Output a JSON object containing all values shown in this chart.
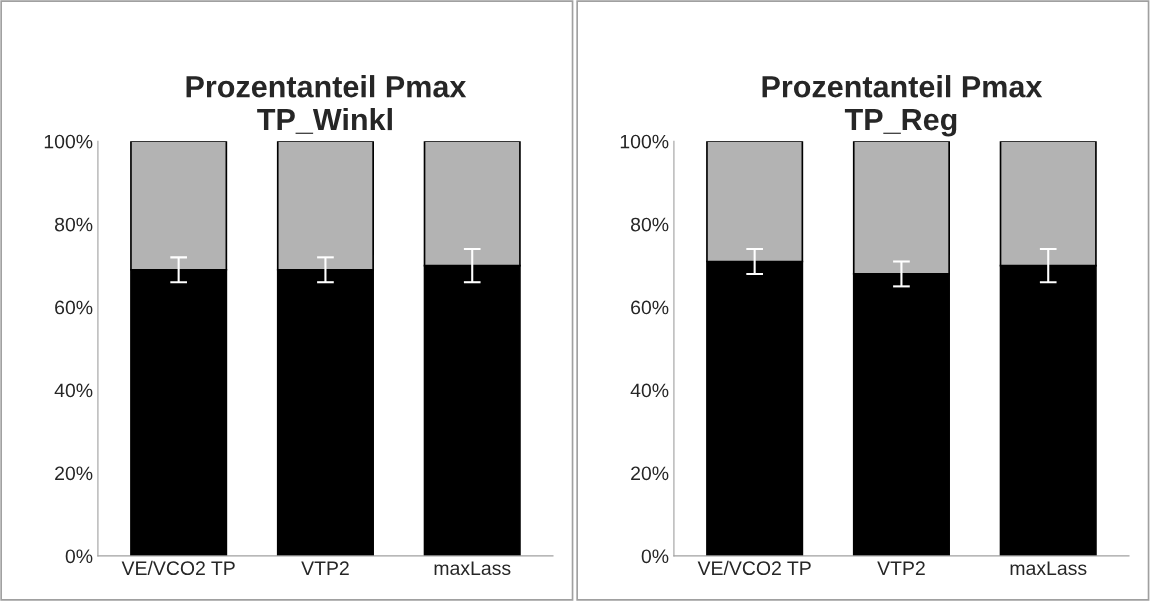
{
  "chart_data": [
    {
      "type": "bar",
      "stacked": true,
      "title": "Prozentanteil Pmax\nTP_Winkl",
      "categories": [
        "VE/VCO2 TP",
        "VTP2",
        "maxLass"
      ],
      "ylim": [
        0,
        100
      ],
      "yticks": [
        {
          "value": 0,
          "label": "0%"
        },
        {
          "value": 20,
          "label": "20%"
        },
        {
          "value": 40,
          "label": "40%"
        },
        {
          "value": 60,
          "label": "60%"
        },
        {
          "value": 80,
          "label": "80%"
        },
        {
          "value": 100,
          "label": "100%"
        }
      ],
      "grid": false,
      "series": [
        {
          "color": "#000000",
          "values": [
            69,
            69,
            70
          ],
          "errors": [
            [
              66,
              72
            ],
            [
              66,
              72
            ],
            [
              66,
              74
            ]
          ]
        },
        {
          "color": "#b3b3b3",
          "values": [
            31,
            31,
            30
          ]
        }
      ]
    },
    {
      "type": "bar",
      "stacked": true,
      "title": "Prozentanteil Pmax\nTP_Reg",
      "categories": [
        "VE/VCO2 TP",
        "VTP2",
        "maxLass"
      ],
      "ylim": [
        0,
        100
      ],
      "yticks": [
        {
          "value": 0,
          "label": "0%"
        },
        {
          "value": 20,
          "label": "20%"
        },
        {
          "value": 40,
          "label": "40%"
        },
        {
          "value": 60,
          "label": "60%"
        },
        {
          "value": 80,
          "label": "80%"
        },
        {
          "value": 100,
          "label": "100%"
        }
      ],
      "grid": false,
      "series": [
        {
          "color": "#000000",
          "values": [
            71,
            68,
            70
          ],
          "errors": [
            [
              68,
              74
            ],
            [
              65,
              71
            ],
            [
              66,
              74
            ]
          ]
        },
        {
          "color": "#b3b3b3",
          "values": [
            29,
            32,
            30
          ]
        }
      ]
    }
  ]
}
